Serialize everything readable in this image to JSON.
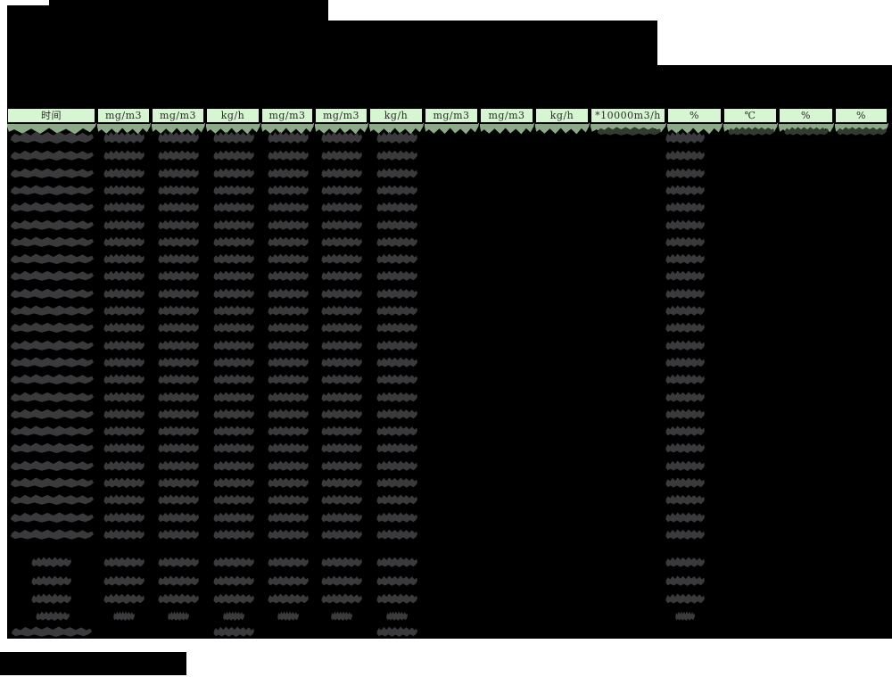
{
  "table": {
    "column_units": [
      "时间",
      "mg/m3",
      "mg/m3",
      "kg/h",
      "mg/m3",
      "mg/m3",
      "kg/h",
      "mg/m3",
      "mg/m3",
      "kg/h",
      "*10000m3/h",
      "%",
      "℃",
      "%",
      "%"
    ],
    "data_row_count": 24,
    "data_row_redacted_columns": [
      0,
      1,
      2,
      3,
      4,
      5,
      6,
      11
    ],
    "first_row_extra_redacted_columns": [
      10,
      12,
      13,
      14
    ],
    "summary_rows": [
      {
        "redacted_columns": [
          0,
          1,
          2,
          3,
          4,
          5,
          6,
          11
        ],
        "blob_size": "normal"
      },
      {
        "redacted_columns": [
          0,
          1,
          2,
          3,
          4,
          5,
          6,
          11
        ],
        "blob_size": "normal"
      },
      {
        "redacted_columns": [
          0,
          1,
          2,
          3,
          4,
          5,
          6,
          11
        ],
        "blob_size": "normal"
      },
      {
        "redacted_columns": [
          0,
          1,
          2,
          3,
          4,
          5,
          6,
          11
        ],
        "blob_size": "small"
      }
    ],
    "total_row": {
      "redacted_columns": [
        0,
        3,
        6
      ],
      "wide_label": true
    }
  },
  "redactions": {
    "title_block": true,
    "subtitle_block": true,
    "caption_block": true
  },
  "colors": {
    "page_bg": "#ffffff",
    "redaction": "#000000",
    "blob": "#3a3a3c",
    "row1_dark_blob": "#333b31",
    "header_bg": "#d7f5d2",
    "header_border": "#000000",
    "header_text": "#2b2b2b",
    "header_shadow": "#8caa88"
  }
}
